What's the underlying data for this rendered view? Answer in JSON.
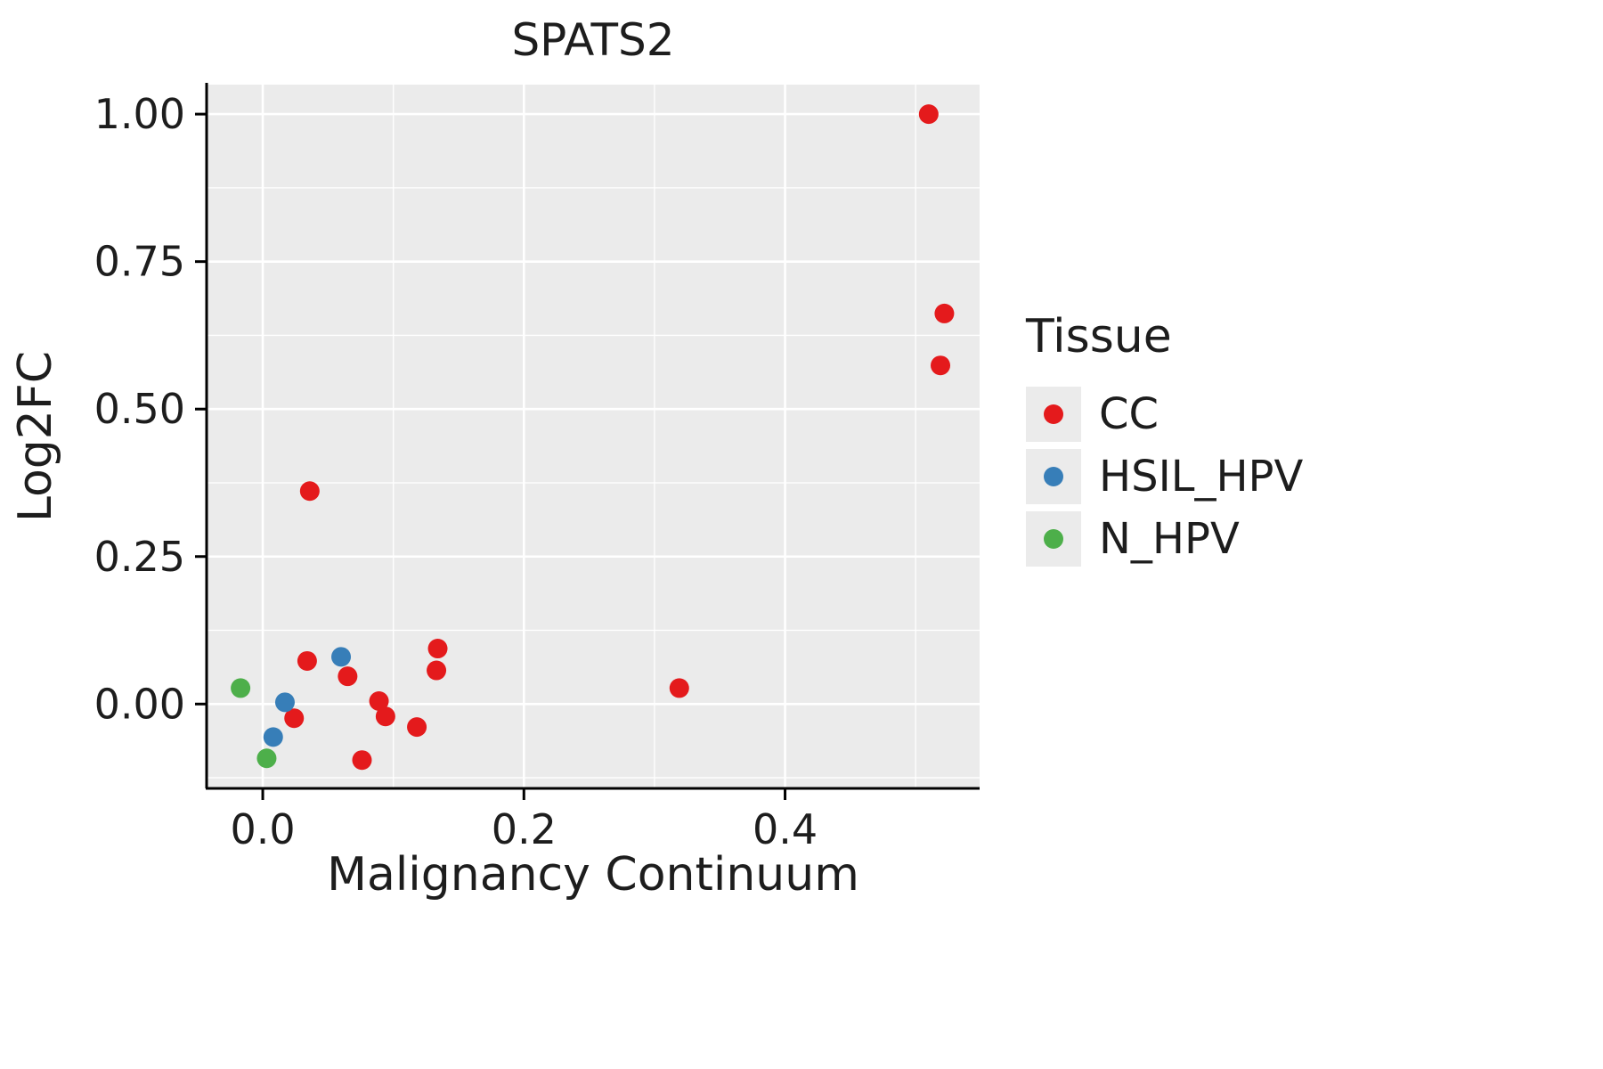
{
  "chart_data": {
    "type": "scatter",
    "title": "SPATS2",
    "xlabel": "Malignancy Continuum",
    "ylabel": "Log2FC",
    "legend_title": "Tissue",
    "grid": true,
    "legend_position": "right",
    "panel_background": "#EBEBEB",
    "grid_color": "#FFFFFF",
    "axis_color": "#000000",
    "text_color": "#1d1d1d",
    "xlim": [
      -0.043,
      0.549
    ],
    "ylim": [
      -0.143,
      1.05
    ],
    "x_major_ticks": [
      0.0,
      0.2,
      0.4
    ],
    "x_tick_labels": [
      "0.0",
      "0.2",
      "0.4"
    ],
    "x_minor_ticks": [
      0.1,
      0.3,
      0.5
    ],
    "y_major_ticks": [
      0.0,
      0.25,
      0.5,
      0.75,
      1.0
    ],
    "y_tick_labels": [
      "0.00",
      "0.25",
      "0.50",
      "0.75",
      "1.00"
    ],
    "y_minor_ticks": [
      -0.125,
      0.125,
      0.375,
      0.625,
      0.875
    ],
    "series": [
      {
        "name": "CC",
        "color": "#E41A1C",
        "points": [
          [
            0.51,
            1.0
          ],
          [
            0.522,
            0.662
          ],
          [
            0.519,
            0.574
          ],
          [
            0.036,
            0.361
          ],
          [
            0.034,
            0.073
          ],
          [
            0.065,
            0.047
          ],
          [
            0.024,
            -0.024
          ],
          [
            0.076,
            -0.095
          ],
          [
            0.089,
            0.005
          ],
          [
            0.094,
            -0.021
          ],
          [
            0.118,
            -0.039
          ],
          [
            0.134,
            0.094
          ],
          [
            0.133,
            0.057
          ],
          [
            0.319,
            0.027
          ]
        ]
      },
      {
        "name": "HSIL_HPV",
        "color": "#377EB8",
        "points": [
          [
            0.06,
            0.08
          ],
          [
            0.017,
            0.003
          ],
          [
            0.008,
            -0.056
          ]
        ]
      },
      {
        "name": "N_HPV",
        "color": "#4DAF4A",
        "points": [
          [
            -0.017,
            0.027
          ],
          [
            0.003,
            -0.092
          ]
        ]
      }
    ]
  }
}
